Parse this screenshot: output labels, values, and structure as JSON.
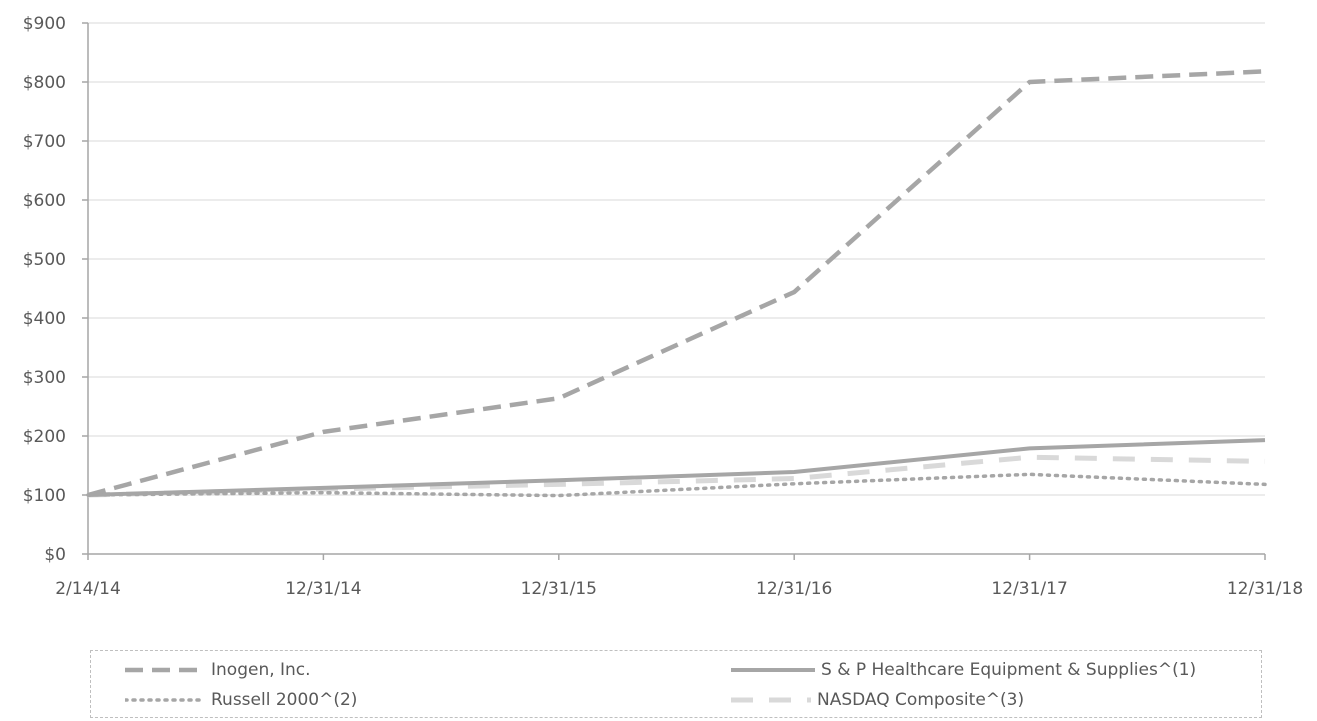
{
  "chart_data": {
    "type": "line",
    "x": [
      "2/14/14",
      "12/31/14",
      "12/31/15",
      "12/31/16",
      "12/31/17",
      "12/31/18"
    ],
    "ylim": [
      0,
      900
    ],
    "yticks": [
      "$0",
      "$100",
      "$200",
      "$300",
      "$400",
      "$500",
      "$600",
      "$700",
      "$800",
      "$900"
    ],
    "grid": true,
    "legend_position": "bottom",
    "series": [
      {
        "name": "Inogen, Inc.",
        "values": [
          100,
          207,
          264,
          444,
          800,
          818
        ],
        "color": "#a6a6a6",
        "style": "dash"
      },
      {
        "name": "S & P Healthcare Equipment & Supplies^(1)",
        "values": [
          100,
          112,
          125,
          139,
          179,
          193
        ],
        "color": "#a6a6a6",
        "style": "solid"
      },
      {
        "name": "Russell 2000^(2)",
        "values": [
          100,
          104,
          99,
          119,
          135,
          118
        ],
        "color": "#a6a6a6",
        "style": "dot"
      },
      {
        "name": "NASDAQ Composite^(3)",
        "values": [
          100,
          110,
          118,
          128,
          164,
          157
        ],
        "color": "#d9d9d9",
        "style": "longdash"
      }
    ]
  }
}
